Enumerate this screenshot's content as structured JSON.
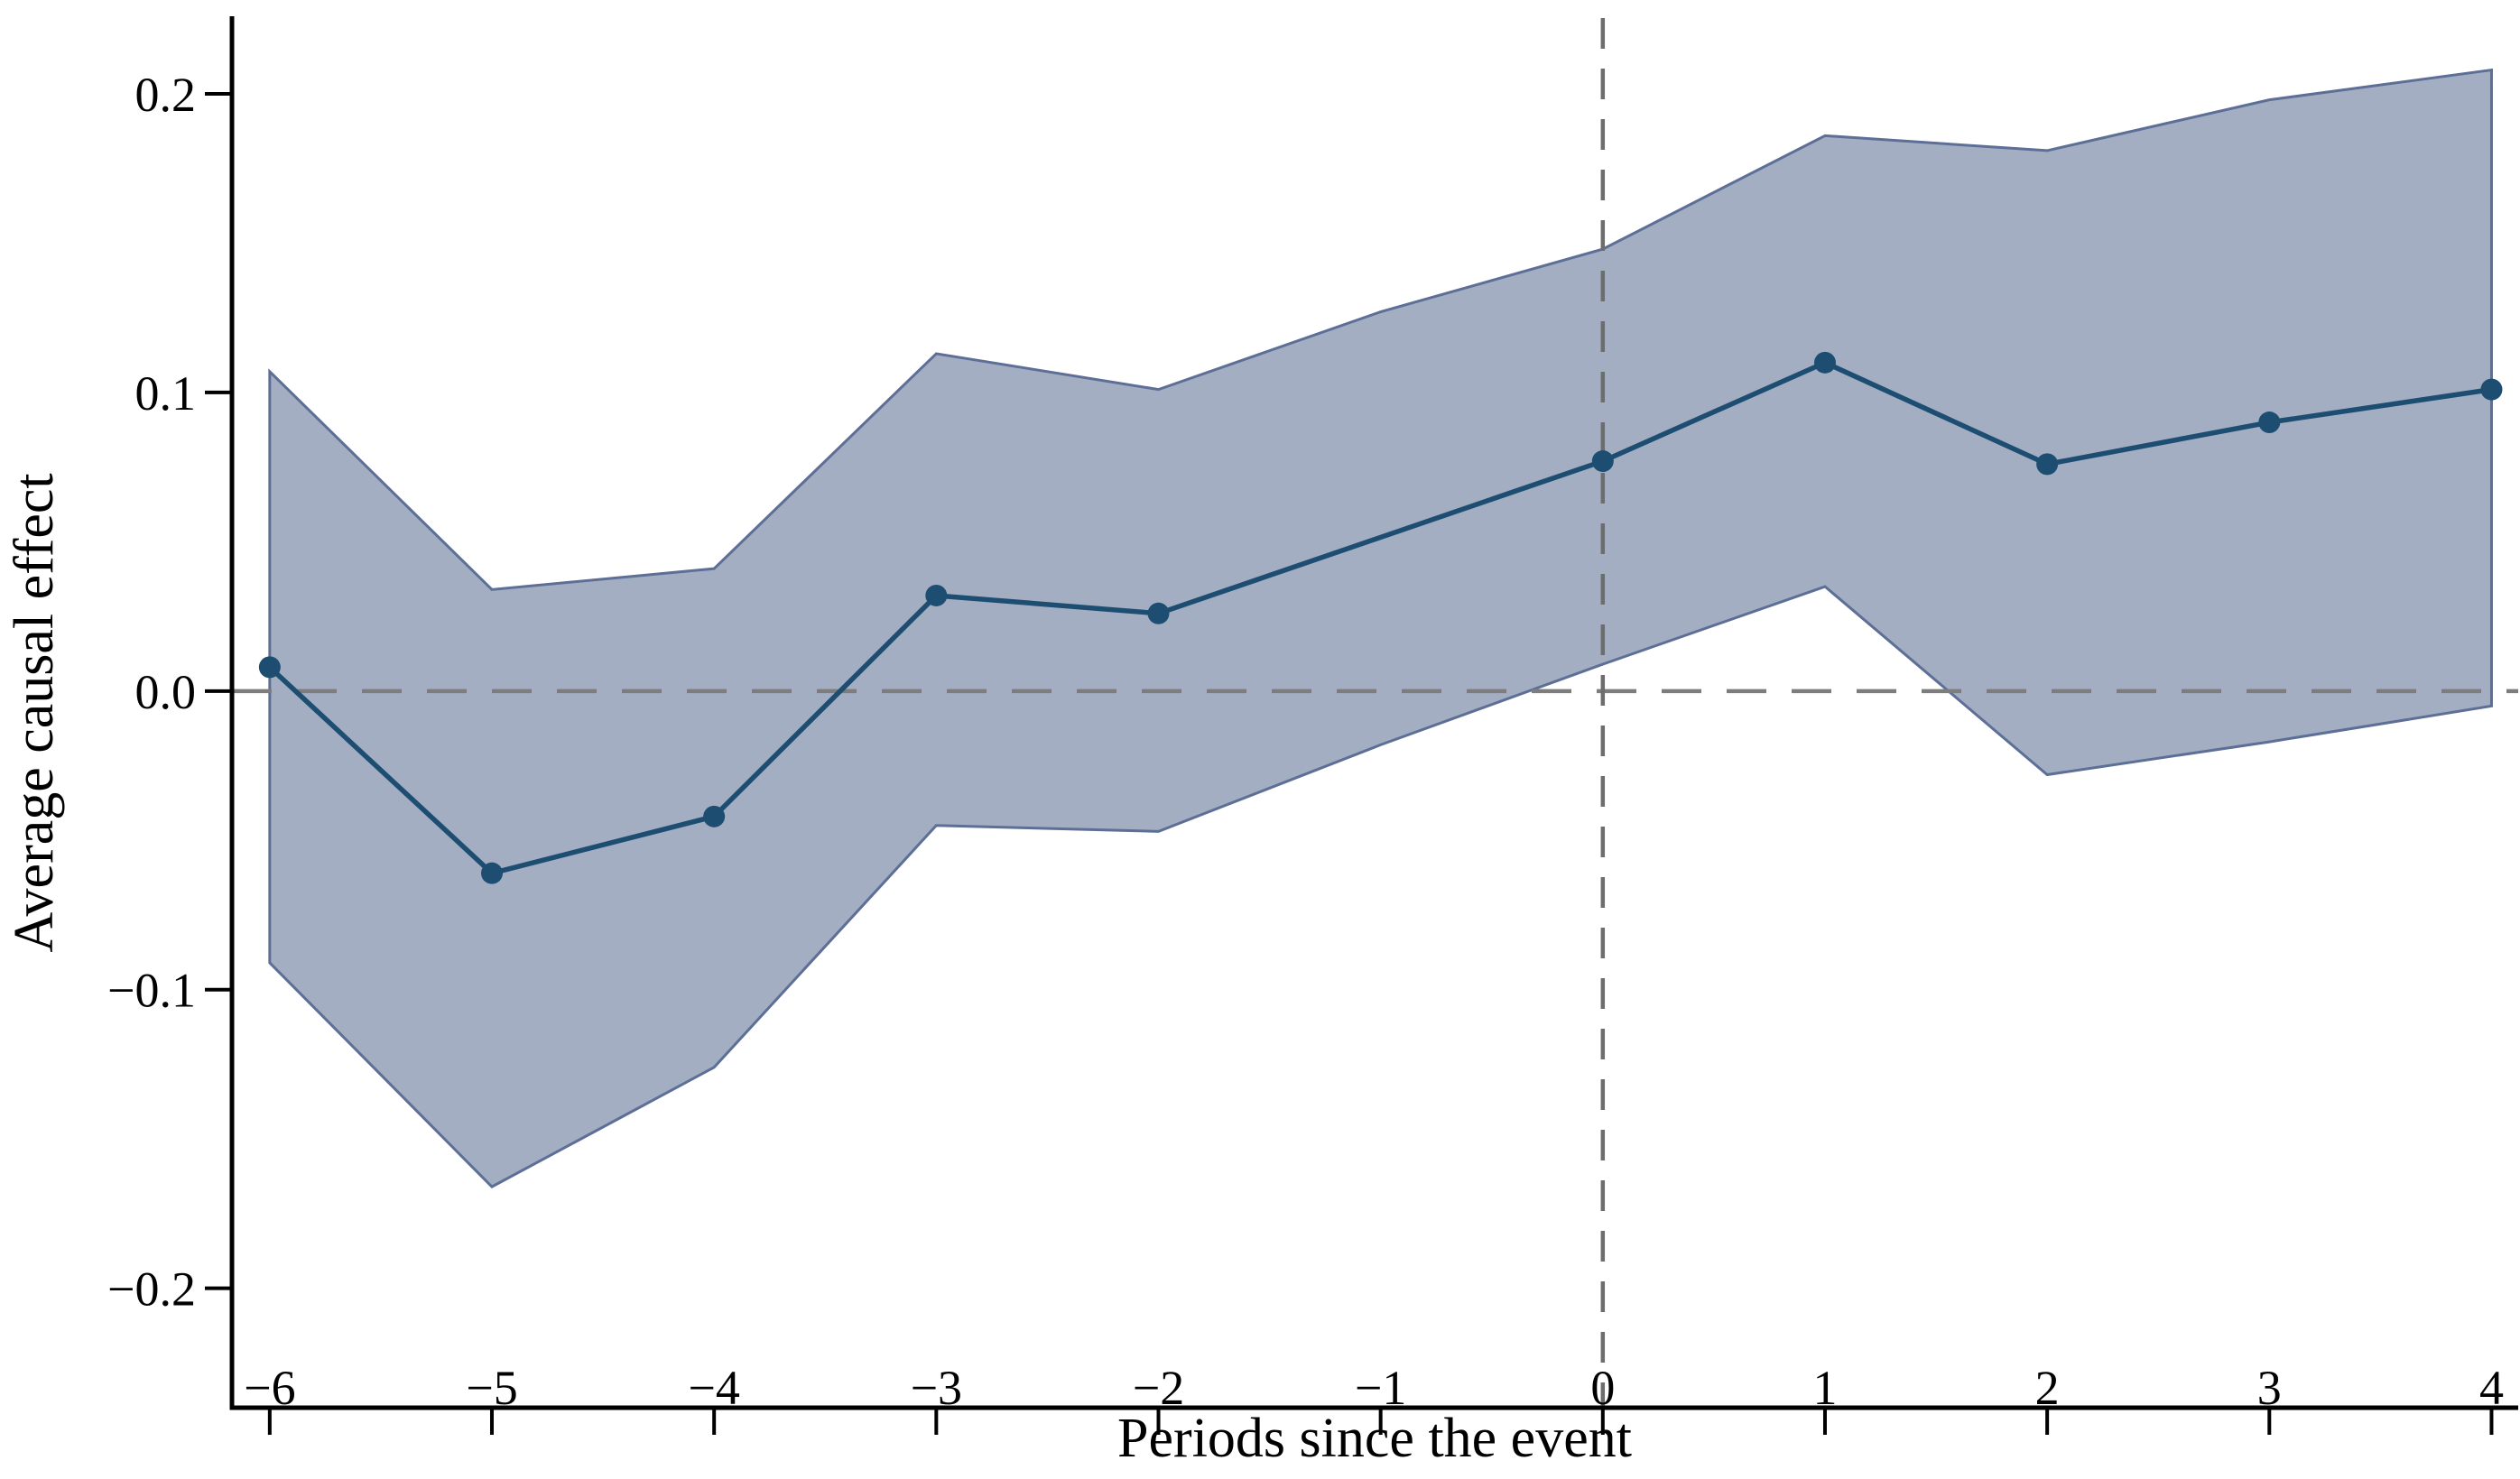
{
  "chart_data": {
    "type": "line",
    "title": "",
    "xlabel": "Periods since the event",
    "ylabel": "Average causal effect",
    "x": [
      -6,
      -5,
      -4,
      -3,
      -2,
      -1,
      0,
      1,
      2,
      3,
      4
    ],
    "series": [
      {
        "name": "point_estimate",
        "marker": "circle",
        "values": [
          0.008,
          -0.061,
          -0.042,
          0.032,
          0.026,
          null,
          0.077,
          0.11,
          0.076,
          0.09,
          0.101
        ]
      },
      {
        "name": "ci_lower",
        "values": [
          -0.091,
          -0.166,
          -0.126,
          -0.045,
          -0.047,
          -0.018,
          0.009,
          0.035,
          -0.028,
          -0.017,
          -0.005
        ]
      },
      {
        "name": "ci_upper",
        "values": [
          0.107,
          0.034,
          0.041,
          0.113,
          0.101,
          0.127,
          0.148,
          0.186,
          0.181,
          0.198,
          0.208
        ]
      }
    ],
    "band": {
      "lower_series": "ci_lower",
      "upper_series": "ci_upper"
    },
    "x_tick_values": [
      -6,
      -5,
      -4,
      -3,
      -2,
      -1,
      0,
      1,
      2,
      3,
      4
    ],
    "x_tick_labels": [
      "−6",
      "−5",
      "−4",
      "−3",
      "−2",
      "−1",
      "0",
      "1",
      "2",
      "3",
      "4"
    ],
    "y_tick_values": [
      0.2,
      0.1,
      0.0,
      -0.1,
      -0.2
    ],
    "y_tick_labels": [
      "0.2",
      "0.1",
      "0.0",
      "−0.1",
      "−0.2"
    ],
    "xlim": [
      -6.17,
      4.12
    ],
    "ylim": [
      -0.24,
      0.226
    ],
    "grid": false,
    "legend_position": "none",
    "reference_lines": [
      {
        "orientation": "horizontal",
        "value": 0,
        "style": "dashed"
      },
      {
        "orientation": "vertical",
        "value": 0,
        "style": "dashed"
      }
    ],
    "colors": {
      "line": "#1d4d71",
      "marker": "#1d4d71",
      "band_fill": "#a3aec2",
      "band_edge": "#5d6f96",
      "dashed_horizontal": "#7d7d7d",
      "dashed_vertical": "#6d6d6d",
      "axis": "#000000",
      "background": "#ffffff"
    }
  }
}
